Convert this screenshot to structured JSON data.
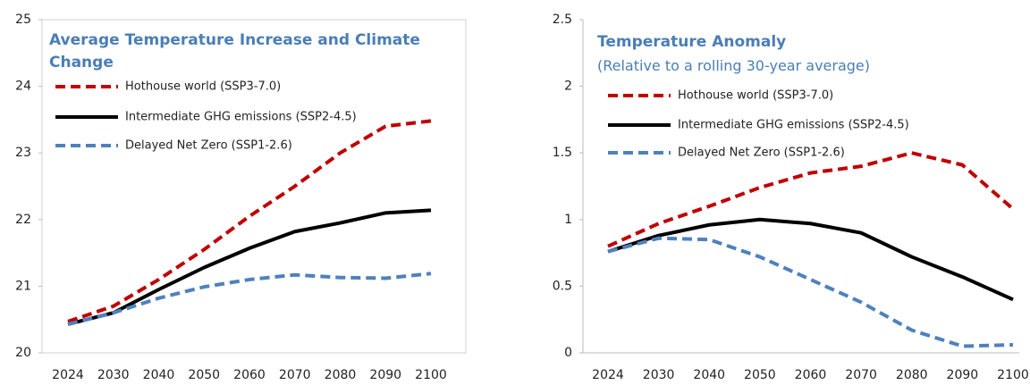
{
  "chart_data": [
    {
      "type": "line",
      "title": "Average Temperature Increase and Climate Change",
      "categories": [
        "2024",
        "2030",
        "2040",
        "2050",
        "2060",
        "2070",
        "2080",
        "2090",
        "2100"
      ],
      "series": [
        {
          "name": "Hothouse world (SSP3-7.0)",
          "color": "#c00000",
          "dashed": true,
          "values": [
            20.47,
            20.7,
            21.1,
            21.55,
            22.05,
            22.5,
            23.0,
            23.4,
            23.48
          ]
        },
        {
          "name": "Intermediate GHG emissions (SSP2-4.5)",
          "color": "#000000",
          "dashed": false,
          "values": [
            20.43,
            20.6,
            20.95,
            21.28,
            21.57,
            21.82,
            21.95,
            22.1,
            22.14
          ]
        },
        {
          "name": "Delayed Net Zero (SSP1-2.6)",
          "color": "#4f81bd",
          "dashed": true,
          "values": [
            20.43,
            20.6,
            20.82,
            20.99,
            21.1,
            21.17,
            21.13,
            21.12,
            21.19
          ]
        }
      ],
      "ylim": [
        20,
        25
      ],
      "yticks": [
        20,
        21,
        22,
        23,
        24,
        25
      ],
      "frame": true
    },
    {
      "type": "line",
      "title": "Temperature Anomaly",
      "subtitle": "(Relative to a rolling 30-year average)",
      "categories": [
        "2024",
        "2030",
        "2040",
        "2050",
        "2060",
        "2070",
        "2080",
        "2090",
        "2100"
      ],
      "series": [
        {
          "name": "Hothouse world (SSP3-7.0)",
          "color": "#c00000",
          "dashed": true,
          "values": [
            0.8,
            0.97,
            1.1,
            1.24,
            1.35,
            1.4,
            1.5,
            1.41,
            1.08
          ]
        },
        {
          "name": "Intermediate GHG emissions (SSP2-4.5)",
          "color": "#000000",
          "dashed": false,
          "values": [
            0.76,
            0.88,
            0.96,
            1.0,
            0.97,
            0.9,
            0.72,
            0.57,
            0.4
          ]
        },
        {
          "name": "Delayed Net Zero (SSP1-2.6)",
          "color": "#4f81bd",
          "dashed": true,
          "values": [
            0.76,
            0.86,
            0.85,
            0.72,
            0.55,
            0.38,
            0.17,
            0.05,
            0.06
          ]
        }
      ],
      "ylim": [
        0,
        2.5
      ],
      "yticks": [
        0,
        0.5,
        1,
        1.5,
        2,
        2.5
      ],
      "frame": false
    }
  ]
}
